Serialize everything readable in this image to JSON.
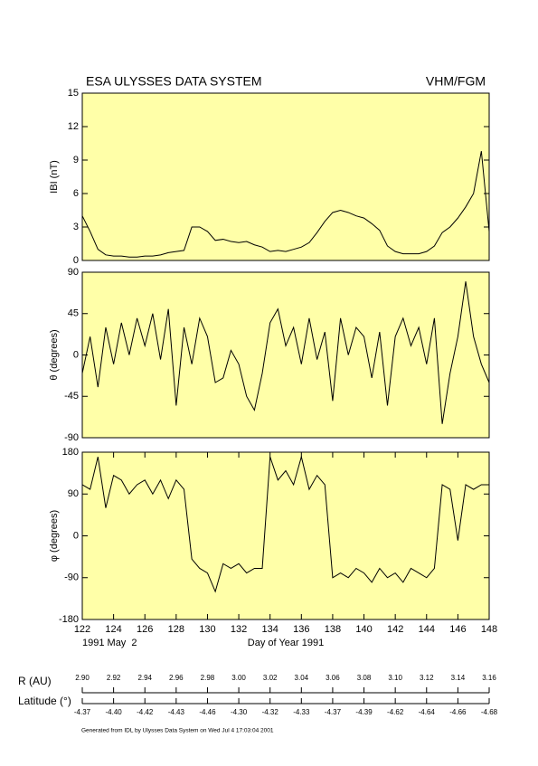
{
  "header": {
    "title": "ESA ULYSSES DATA SYSTEM",
    "instrument": "VHM/FGM"
  },
  "chart_data": [
    {
      "type": "line",
      "ylabel": "IBI (nT)",
      "color": "#000000",
      "background": "#ffffa8",
      "xlim": [
        122,
        148
      ],
      "ylim": [
        0,
        15
      ],
      "yticks": [
        0,
        3,
        6,
        9,
        12,
        15
      ],
      "x": [
        122,
        122.5,
        123,
        123.5,
        124,
        124.5,
        125,
        125.5,
        126,
        126.5,
        127,
        127.5,
        128,
        128.5,
        129,
        129.5,
        130,
        130.5,
        131,
        131.5,
        132,
        132.5,
        133,
        133.5,
        134,
        134.5,
        135,
        135.5,
        136,
        136.5,
        137,
        137.5,
        138,
        138.5,
        139,
        139.5,
        140,
        140.5,
        141,
        141.5,
        142,
        142.5,
        143,
        143.5,
        144,
        144.5,
        145,
        145.5,
        146,
        146.5,
        147,
        147.5,
        148
      ],
      "values": [
        4.0,
        2.6,
        1.0,
        0.5,
        0.4,
        0.4,
        0.3,
        0.3,
        0.4,
        0.4,
        0.5,
        0.7,
        0.8,
        0.9,
        3.0,
        3.0,
        2.6,
        1.8,
        1.9,
        1.7,
        1.6,
        1.7,
        1.4,
        1.2,
        0.8,
        0.9,
        0.8,
        1.0,
        1.2,
        1.6,
        2.5,
        3.5,
        4.3,
        4.5,
        4.3,
        4.0,
        3.8,
        3.3,
        2.7,
        1.3,
        0.8,
        0.6,
        0.6,
        0.6,
        0.8,
        1.3,
        2.5,
        3.0,
        3.8,
        4.8,
        6.0,
        9.8,
        2.6
      ]
    },
    {
      "type": "line",
      "ylabel": "θ (degrees)",
      "color": "#000000",
      "background": "#ffffa8",
      "xlim": [
        122,
        148
      ],
      "ylim": [
        -90,
        90
      ],
      "yticks": [
        -90,
        -45,
        0,
        45,
        90
      ],
      "x": [
        122,
        122.5,
        123,
        123.5,
        124,
        124.5,
        125,
        125.5,
        126,
        126.5,
        127,
        127.5,
        128,
        128.5,
        129,
        129.5,
        130,
        130.5,
        131,
        131.5,
        132,
        132.5,
        133,
        133.5,
        134,
        134.5,
        135,
        135.5,
        136,
        136.5,
        137,
        137.5,
        138,
        138.5,
        139,
        139.5,
        140,
        140.5,
        141,
        141.5,
        142,
        142.5,
        143,
        143.5,
        144,
        144.5,
        145,
        145.5,
        146,
        146.5,
        147,
        147.5,
        148
      ],
      "values": [
        -20,
        20,
        -35,
        30,
        -10,
        35,
        0,
        40,
        10,
        45,
        -5,
        50,
        -55,
        30,
        -10,
        40,
        20,
        -30,
        -25,
        5,
        -10,
        -45,
        -60,
        -20,
        35,
        50,
        10,
        30,
        -10,
        40,
        -5,
        25,
        -50,
        40,
        0,
        30,
        20,
        -25,
        25,
        -55,
        20,
        40,
        10,
        30,
        -10,
        40,
        -75,
        -20,
        20,
        80,
        20,
        -10,
        -30
      ]
    },
    {
      "type": "line",
      "ylabel": "φ (degrees)",
      "xlabel": "Day of Year 1991",
      "start_date": "1991 May  2",
      "color": "#000000",
      "background": "#ffffa8",
      "xlim": [
        122,
        148
      ],
      "xticks": [
        122,
        124,
        126,
        128,
        130,
        132,
        134,
        136,
        138,
        140,
        142,
        144,
        146,
        148
      ],
      "ylim": [
        -180,
        180
      ],
      "yticks": [
        -180,
        -90,
        0,
        90,
        180
      ],
      "x": [
        122,
        122.5,
        123,
        123.5,
        124,
        124.5,
        125,
        125.5,
        126,
        126.5,
        127,
        127.5,
        128,
        128.5,
        129,
        129.5,
        130,
        130.5,
        131,
        131.5,
        132,
        132.5,
        133,
        133.5,
        134,
        134.5,
        135,
        135.5,
        136,
        136.5,
        137,
        137.5,
        138,
        138.5,
        139,
        139.5,
        140,
        140.5,
        141,
        141.5,
        142,
        142.5,
        143,
        143.5,
        144,
        144.5,
        145,
        145.5,
        146,
        146.5,
        147,
        147.5,
        148
      ],
      "values": [
        110,
        100,
        170,
        60,
        130,
        120,
        90,
        110,
        120,
        90,
        120,
        80,
        120,
        100,
        -50,
        -70,
        -80,
        -120,
        -60,
        -70,
        -60,
        -80,
        -70,
        -70,
        170,
        120,
        140,
        110,
        170,
        100,
        130,
        110,
        -90,
        -80,
        -90,
        -70,
        -80,
        -100,
        -70,
        -90,
        -80,
        -100,
        -70,
        -80,
        -90,
        -70,
        110,
        100,
        -10,
        110,
        100,
        110,
        110
      ]
    }
  ],
  "ephemeris": {
    "r_label": "R (AU)",
    "r_values": [
      {
        "value": 2.9,
        "label": "2.90"
      },
      2.92,
      2.94,
      2.96,
      2.98,
      {
        "value": 3,
        "label": "3.00"
      },
      3.02,
      3.04,
      3.06,
      3.08,
      {
        "value": 3.1,
        "label": "3.10"
      },
      3.12,
      3.14,
      3.16
    ],
    "lat_label": "Latitude (°)",
    "lat_values": [
      -4.37,
      {
        "value": -4.4,
        "label": "-4.40"
      },
      -4.42,
      -4.43,
      -4.46,
      {
        "value": -4.3,
        "label": "-4.30"
      },
      -4.32,
      -4.33,
      -4.37,
      -4.39,
      -4.62,
      -4.64,
      -4.66,
      -4.68
    ]
  },
  "footer": "Generated from IDL by Ulysses Data System on Wed Jul  4 17:03:04 2001"
}
